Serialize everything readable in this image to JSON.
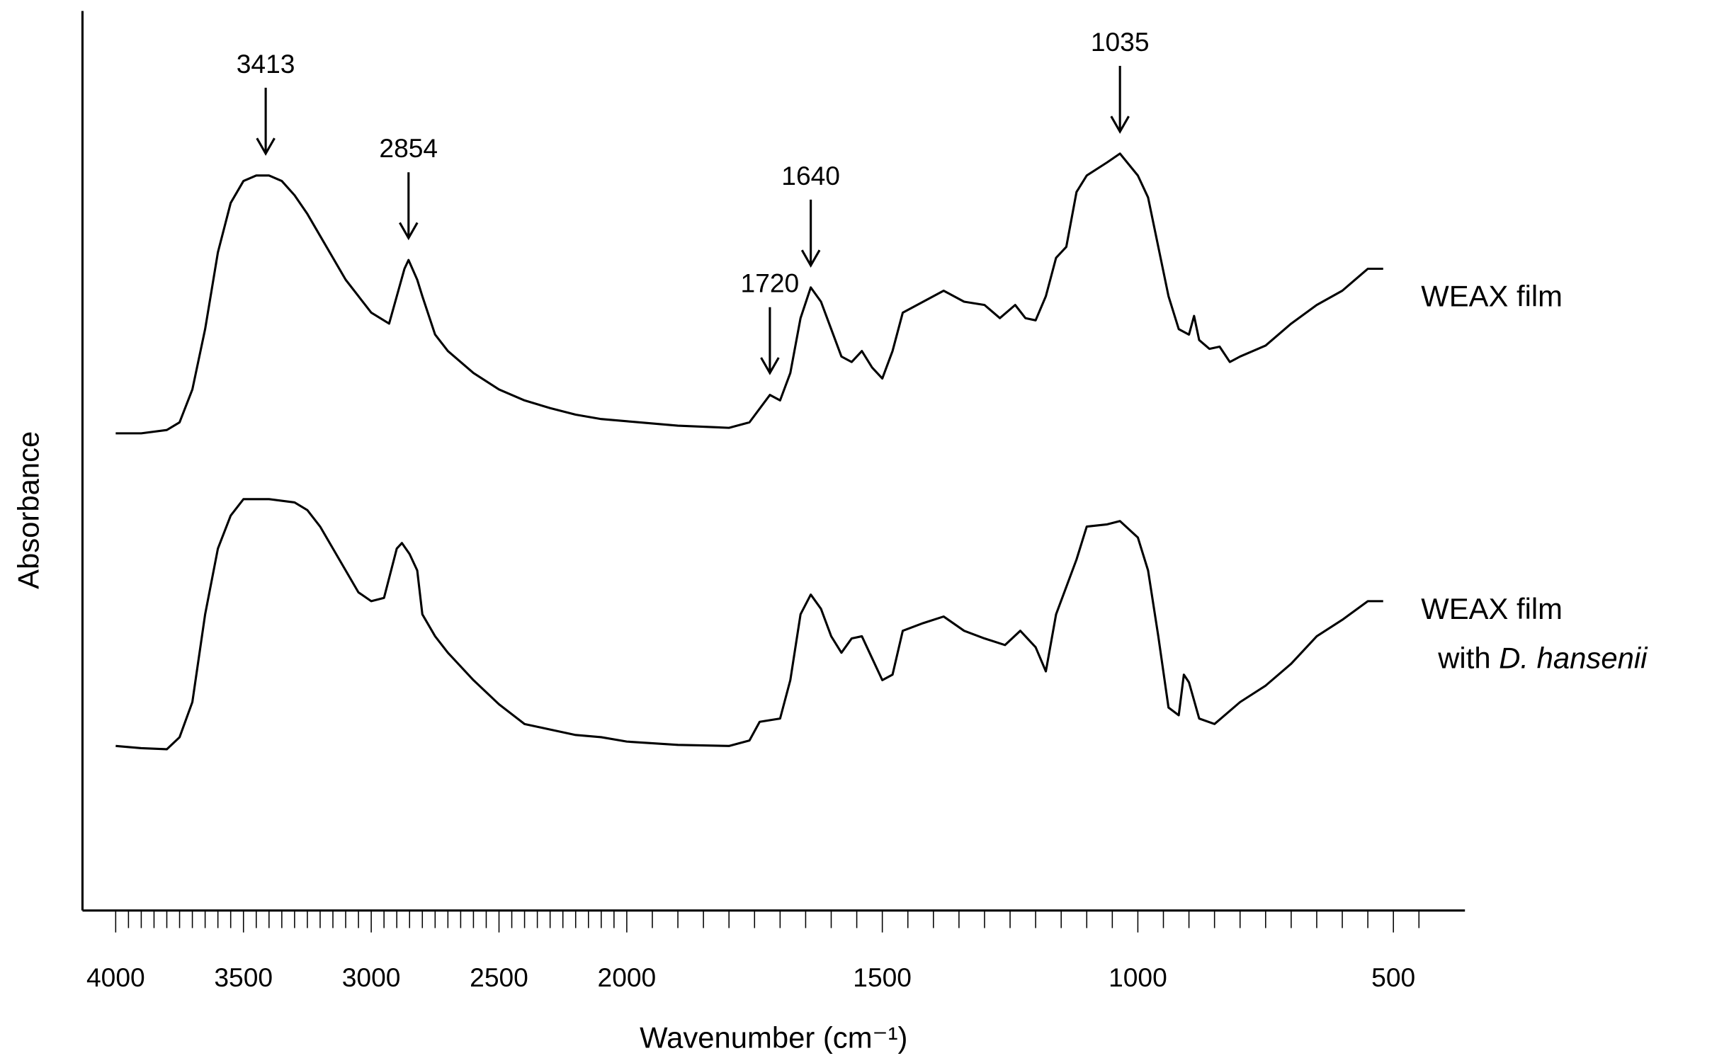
{
  "chart_data": {
    "type": "line",
    "x_label": "Wavenumber (cm⁻¹)",
    "y_label": "Absorbance",
    "xlim": [
      4130,
      360
    ],
    "x_scale_change": {
      "at": 2000,
      "expansion": 2
    },
    "ylim": [
      0,
      820
    ],
    "xticks": [
      4000,
      3500,
      3000,
      2500,
      2000,
      1500,
      1000,
      500
    ],
    "xminorticks": [
      3950,
      3900,
      3850,
      3800,
      3750,
      3700,
      3650,
      3600,
      3550,
      3450,
      3400,
      3350,
      3300,
      3250,
      3200,
      3150,
      3100,
      3050,
      2950,
      2900,
      2850,
      2800,
      2750,
      2700,
      2650,
      2600,
      2550,
      2450,
      2400,
      2350,
      2300,
      2250,
      2200,
      2150,
      2100,
      2050,
      1950,
      1900,
      1850,
      1800,
      1750,
      1700,
      1650,
      1600,
      1550,
      1450,
      1400,
      1350,
      1300,
      1250,
      1200,
      1150,
      1100,
      1050,
      950,
      900,
      850,
      800,
      750,
      700,
      650,
      600,
      550,
      450
    ],
    "peak_labels": [
      3413,
      2854,
      1720,
      1640,
      1035
    ],
    "series": [
      {
        "name": "WEAX film",
        "color": "#000000",
        "x": [
          4000,
          3900,
          3800,
          3750,
          3700,
          3650,
          3600,
          3550,
          3500,
          3450,
          3400,
          3350,
          3300,
          3250,
          3200,
          3150,
          3100,
          3050,
          3000,
          2930,
          2900,
          2870,
          2854,
          2820,
          2800,
          2750,
          2700,
          2600,
          2500,
          2400,
          2300,
          2200,
          2100,
          2000,
          1900,
          1800,
          1760,
          1720,
          1700,
          1680,
          1660,
          1640,
          1620,
          1600,
          1580,
          1560,
          1540,
          1520,
          1500,
          1480,
          1460,
          1420,
          1380,
          1340,
          1300,
          1270,
          1240,
          1220,
          1200,
          1180,
          1160,
          1140,
          1120,
          1100,
          1060,
          1035,
          1000,
          980,
          960,
          940,
          920,
          900,
          890,
          880,
          860,
          840,
          820,
          800,
          750,
          700,
          650,
          600,
          550,
          520
        ],
        "values": [
          435,
          435,
          438,
          445,
          475,
          530,
          600,
          645,
          665,
          670,
          670,
          665,
          652,
          635,
          615,
          595,
          575,
          560,
          545,
          535,
          560,
          585,
          593,
          575,
          560,
          525,
          510,
          490,
          475,
          465,
          458,
          452,
          448,
          446,
          442,
          440,
          445,
          470,
          465,
          490,
          540,
          568,
          555,
          530,
          505,
          500,
          510,
          495,
          485,
          510,
          545,
          555,
          565,
          555,
          552,
          540,
          552,
          540,
          538,
          560,
          595,
          605,
          655,
          670,
          682,
          690,
          670,
          650,
          605,
          560,
          530,
          525,
          542,
          520,
          512,
          514,
          500,
          505,
          515,
          535,
          552,
          565,
          585,
          585
        ]
      },
      {
        "name": "WEAX film with D. hansenii",
        "color": "#000000",
        "x": [
          4000,
          3900,
          3800,
          3750,
          3700,
          3650,
          3600,
          3550,
          3500,
          3400,
          3300,
          3250,
          3200,
          3150,
          3100,
          3050,
          3000,
          2950,
          2900,
          2880,
          2850,
          2820,
          2800,
          2750,
          2700,
          2600,
          2500,
          2400,
          2300,
          2200,
          2100,
          2000,
          1900,
          1800,
          1760,
          1740,
          1700,
          1680,
          1660,
          1640,
          1620,
          1600,
          1580,
          1560,
          1540,
          1520,
          1500,
          1480,
          1460,
          1420,
          1380,
          1340,
          1300,
          1260,
          1230,
          1200,
          1180,
          1160,
          1120,
          1100,
          1060,
          1035,
          1000,
          980,
          960,
          940,
          920,
          910,
          900,
          880,
          850,
          800,
          750,
          700,
          650,
          600,
          550,
          520
        ],
        "values": [
          150,
          148,
          147,
          158,
          190,
          270,
          330,
          360,
          375,
          375,
          372,
          365,
          350,
          330,
          310,
          290,
          282,
          285,
          330,
          335,
          325,
          310,
          270,
          250,
          235,
          210,
          188,
          170,
          165,
          160,
          158,
          154,
          151,
          150,
          155,
          172,
          175,
          210,
          270,
          288,
          275,
          250,
          235,
          248,
          250,
          230,
          210,
          215,
          255,
          262,
          268,
          255,
          248,
          242,
          255,
          240,
          218,
          270,
          320,
          350,
          352,
          355,
          340,
          310,
          250,
          185,
          178,
          215,
          208,
          175,
          170,
          190,
          205,
          225,
          250,
          265,
          282,
          282
        ]
      }
    ]
  }
}
